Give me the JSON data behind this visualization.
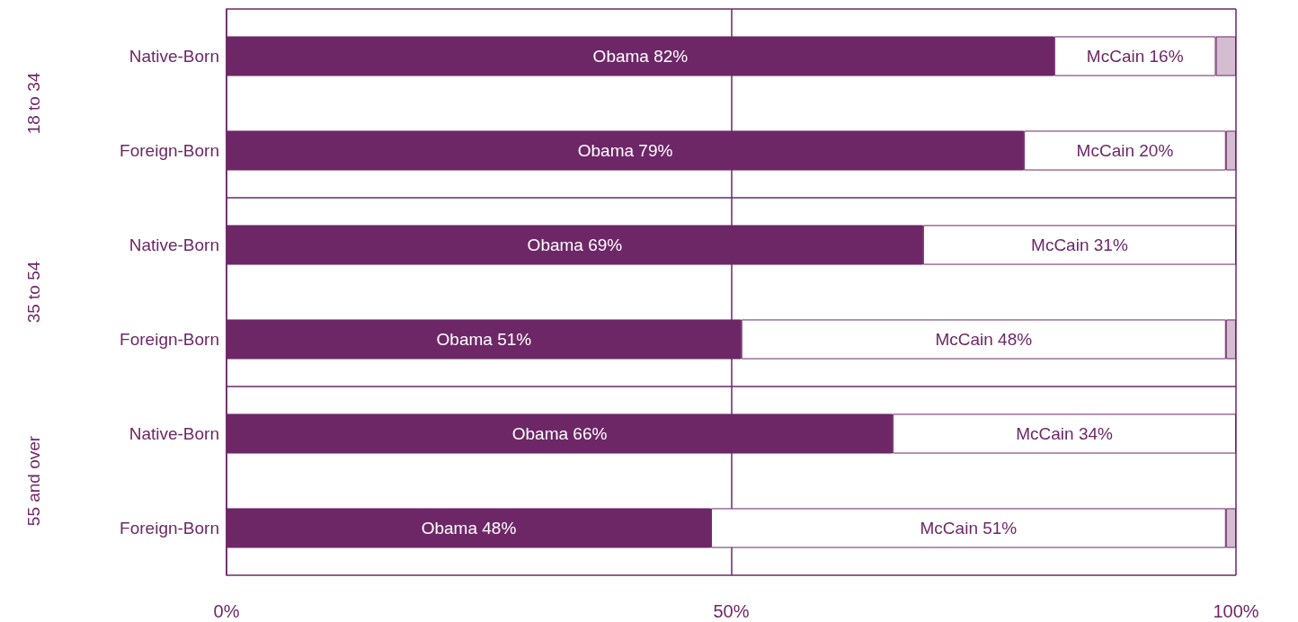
{
  "chart_data": {
    "type": "bar",
    "orientation": "horizontal",
    "stacked": true,
    "categories": [
      "Native-Born",
      "Foreign-Born",
      "Native-Born",
      "Foreign-Born",
      "Native-Born",
      "Foreign-Born"
    ],
    "annotations": [
      "18 to 34",
      "35 to 54",
      "55 and over"
    ],
    "series": [
      {
        "color": "#6d2767",
        "values": [
          82,
          79,
          69,
          51,
          66,
          48
        ],
        "value_labels": [
          "Obama 82%",
          "Obama 79%",
          "Obama 69%",
          "Obama 51%",
          "Obama 66%",
          "Obama 48%"
        ]
      },
      {
        "color": "#ffffff",
        "values": [
          16,
          20,
          31,
          48,
          34,
          51
        ],
        "value_labels": [
          "McCain 16%",
          "McCain 20%",
          "McCain 31%",
          "McCain 48%",
          "McCain 34%",
          "McCain 51%"
        ]
      },
      {
        "color": "#d4bcd1",
        "values": [
          2,
          1,
          null,
          1,
          null,
          1
        ]
      }
    ],
    "xlim": [
      0,
      100
    ],
    "xticks": [
      {
        "value": 0,
        "label": "0%"
      },
      {
        "value": 50,
        "label": "50%"
      },
      {
        "value": 100,
        "label": "100%"
      }
    ],
    "grid": "x"
  }
}
